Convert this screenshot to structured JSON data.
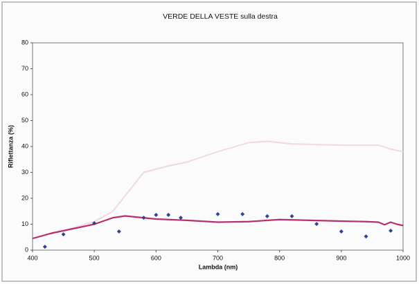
{
  "chart_data": {
    "type": "line",
    "title": "VERDE DELLA VESTE sulla destra",
    "x_label": "Lambda (nm)",
    "y_label": "Riflettanza (%)",
    "xlim": [
      400,
      1000
    ],
    "xticks": [
      400,
      500,
      600,
      700,
      800,
      900,
      1000
    ],
    "ylim": [
      0,
      80
    ],
    "yticks": [
      0,
      10,
      20,
      30,
      40,
      50,
      60,
      70,
      80
    ],
    "grid": false,
    "series": [
      {
        "style": "line",
        "color": "#f2dbe3",
        "x": [
          400,
          450,
          500,
          530,
          560,
          580,
          620,
          650,
          700,
          750,
          780,
          820,
          900,
          960,
          980,
          1000
        ],
        "values": [
          4.5,
          7.5,
          11,
          15,
          24,
          30,
          32.5,
          34,
          38,
          41.5,
          42,
          41,
          40.5,
          40.5,
          39,
          38
        ]
      },
      {
        "style": "line",
        "color": "#b5306d",
        "x": [
          400,
          430,
          450,
          500,
          530,
          550,
          600,
          650,
          700,
          750,
          800,
          850,
          900,
          940,
          960,
          970,
          980,
          990,
          1000
        ],
        "values": [
          4.5,
          6.5,
          7.5,
          10,
          12.5,
          13.2,
          12,
          11.5,
          10.8,
          11,
          11.8,
          11.5,
          11.2,
          11,
          10.8,
          9.8,
          10.8,
          10,
          9.5
        ]
      },
      {
        "style": "markers",
        "color": "#2f4496",
        "x": [
          420,
          450,
          500,
          540,
          580,
          600,
          620,
          640,
          700,
          740,
          780,
          820,
          860,
          900,
          940,
          980
        ],
        "values": [
          1.3,
          6.1,
          10.4,
          7.2,
          12.5,
          13.6,
          13.6,
          12.5,
          13.9,
          13.9,
          13.1,
          13.1,
          10.1,
          7.2,
          5.3,
          7.5
        ]
      }
    ]
  }
}
